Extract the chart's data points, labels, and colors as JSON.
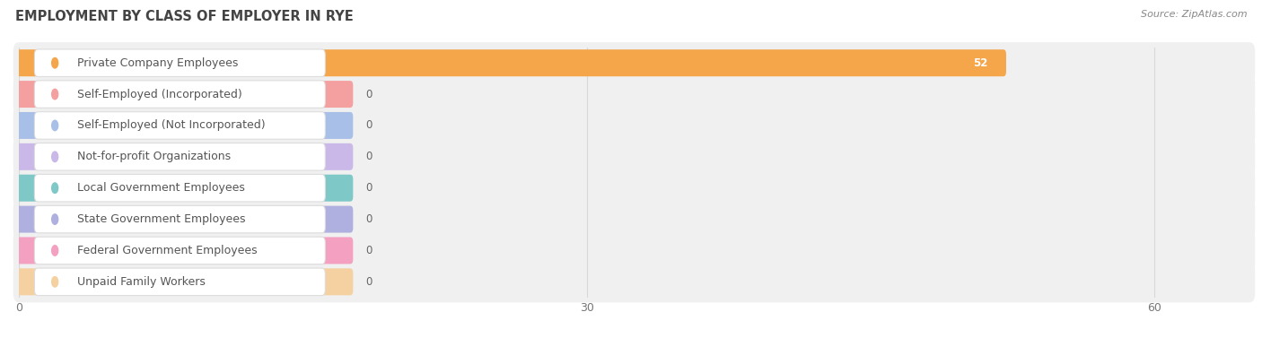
{
  "title": "EMPLOYMENT BY CLASS OF EMPLOYER IN RYE",
  "source": "Source: ZipAtlas.com",
  "categories": [
    "Private Company Employees",
    "Self-Employed (Incorporated)",
    "Self-Employed (Not Incorporated)",
    "Not-for-profit Organizations",
    "Local Government Employees",
    "State Government Employees",
    "Federal Government Employees",
    "Unpaid Family Workers"
  ],
  "values": [
    52,
    0,
    0,
    0,
    0,
    0,
    0,
    0
  ],
  "bar_colors": [
    "#f5a54a",
    "#f4a0a0",
    "#a8bfe8",
    "#c9b8e8",
    "#7ec8c8",
    "#b0b0e0",
    "#f4a0c0",
    "#f5d0a0"
  ],
  "xlim_max": 65,
  "xticks": [
    0,
    30,
    60
  ],
  "title_fontsize": 10.5,
  "label_fontsize": 9,
  "value_fontsize": 8.5,
  "source_fontsize": 8,
  "row_bg_color": "#f0f0f0",
  "page_bg_color": "#ffffff",
  "label_box_color": "#ffffff",
  "label_text_color": "#555555",
  "value_text_color_inside": "#ffffff",
  "value_text_color_outside": "#666666",
  "grid_color": "#d8d8d8"
}
